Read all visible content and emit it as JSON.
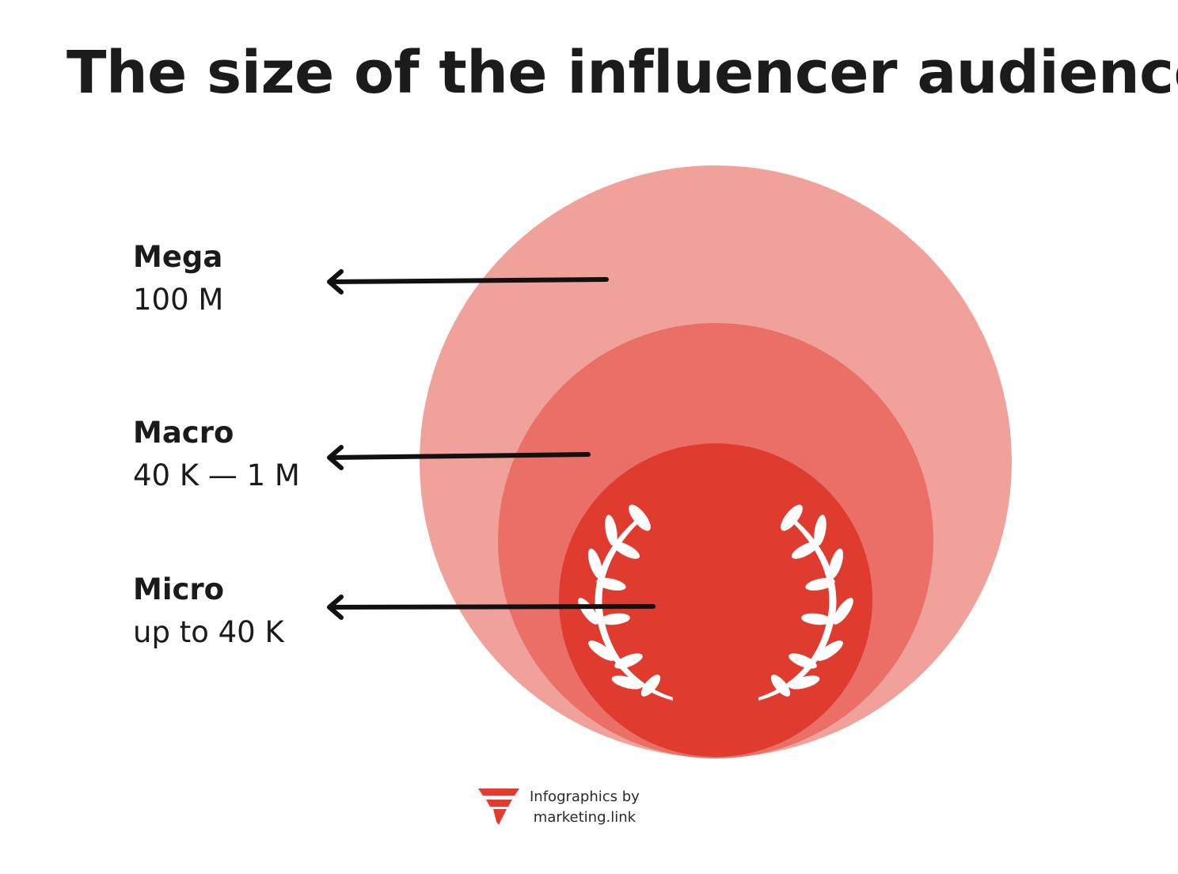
{
  "title": "The size of the influencer audience",
  "tiers": [
    {
      "name": "Mega",
      "range": "100 M"
    },
    {
      "name": "Macro",
      "range": "40 K — 1 M"
    },
    {
      "name": "Micro",
      "range": "up to 40 K"
    }
  ],
  "colors": {
    "mega_circle": "#f0a19a",
    "macro_circle": "#ea7067",
    "micro_circle": "#e03b2f",
    "arrow": "#111111",
    "laurel": "#ffffff",
    "brand": "#e53b2e"
  },
  "icons": {
    "laurel": "laurel-wreath-icon",
    "logo": "marketing-link-logo-icon"
  },
  "footer": {
    "line1": "Infographics by",
    "line2": "marketing.link"
  }
}
